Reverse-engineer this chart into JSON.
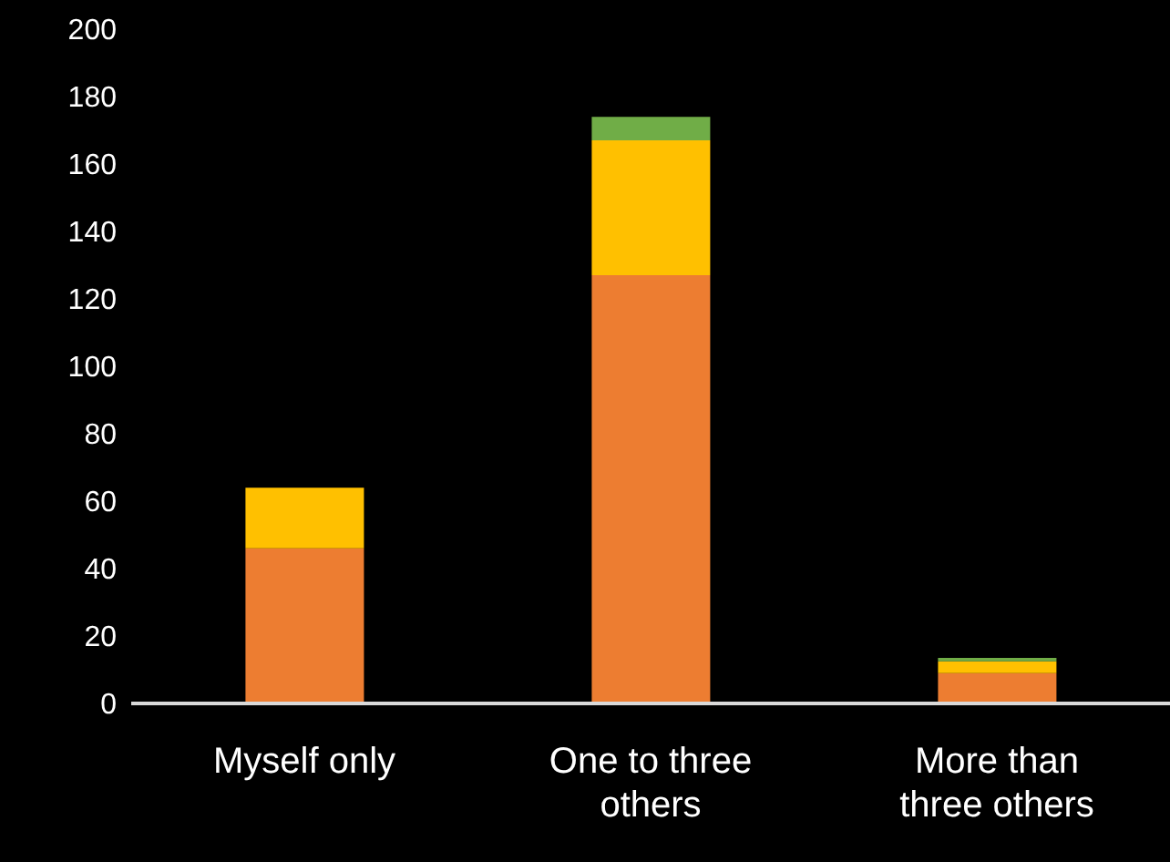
{
  "chart_data": {
    "type": "bar",
    "stacked": true,
    "categories": [
      "Myself only",
      "One to three others",
      "More than three others"
    ],
    "series": [
      {
        "color": "#ed7d31",
        "values": [
          46,
          127,
          9
        ]
      },
      {
        "color": "#ffc000",
        "values": [
          18,
          40,
          3.5
        ]
      },
      {
        "color": "#70ad47",
        "values": [
          0,
          7,
          1
        ]
      }
    ],
    "ylim": [
      0,
      200
    ],
    "yticks": [
      0,
      20,
      40,
      60,
      80,
      100,
      120,
      140,
      160,
      180,
      200
    ]
  }
}
